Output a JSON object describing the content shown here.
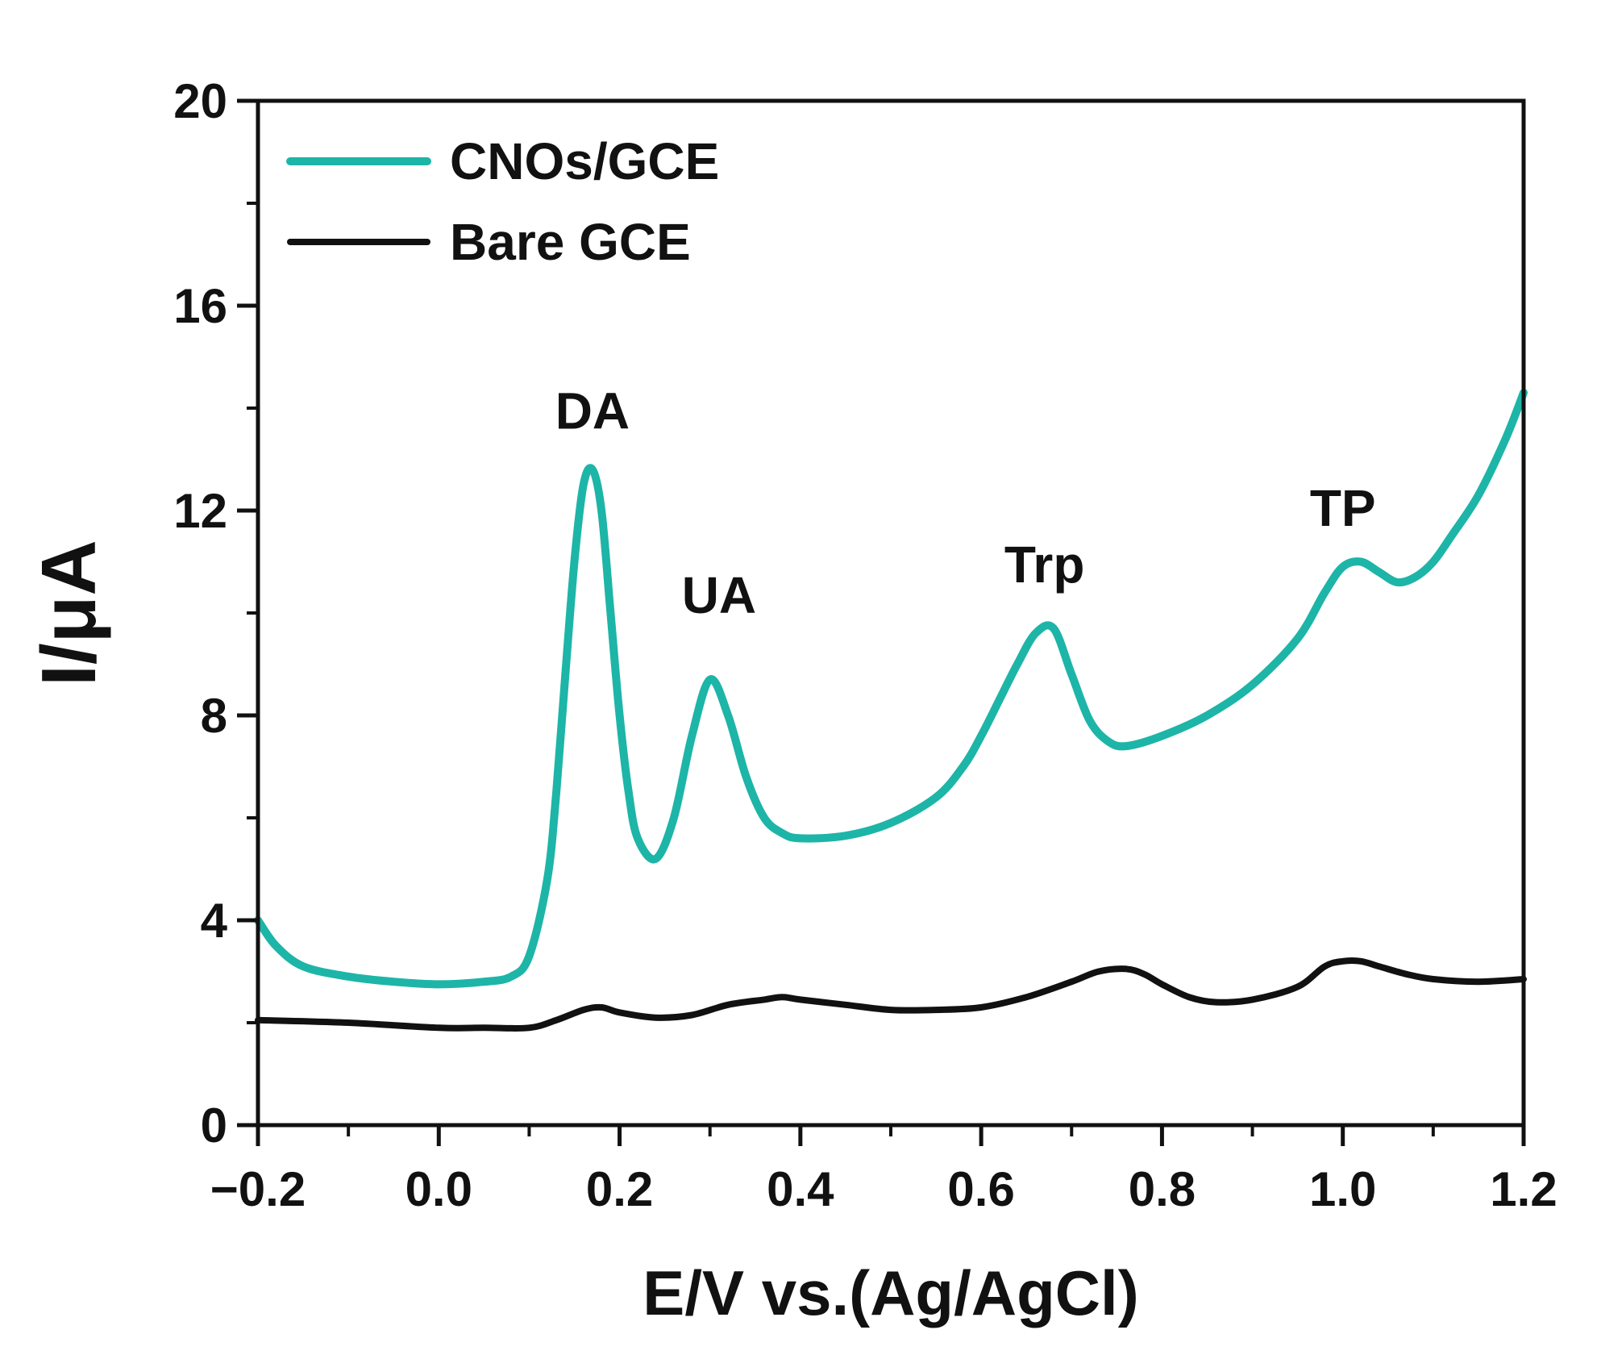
{
  "chart_data": {
    "type": "line",
    "title": "",
    "xlabel": "E/V vs.(Ag/AgCl)",
    "ylabel": "I/μA",
    "xlim": [
      -0.2,
      1.2
    ],
    "ylim": [
      0,
      20
    ],
    "xticks": [
      -0.2,
      0.0,
      0.2,
      0.4,
      0.6,
      0.8,
      1.0,
      1.2
    ],
    "xtick_labels": [
      "−0.2",
      "0.0",
      "0.2",
      "0.4",
      "0.6",
      "0.8",
      "1.0",
      "1.2"
    ],
    "yticks": [
      0,
      4,
      8,
      12,
      16,
      20
    ],
    "ytick_labels": [
      "0",
      "4",
      "8",
      "12",
      "16",
      "20"
    ],
    "grid": false,
    "legend_position": "top-left",
    "series": [
      {
        "name": "CNOs/GCE",
        "color": "#1db5a7",
        "x": [
          -0.2,
          -0.18,
          -0.15,
          -0.1,
          -0.05,
          0.0,
          0.05,
          0.08,
          0.1,
          0.12,
          0.13,
          0.14,
          0.15,
          0.16,
          0.17,
          0.18,
          0.19,
          0.2,
          0.21,
          0.22,
          0.24,
          0.26,
          0.28,
          0.3,
          0.32,
          0.34,
          0.36,
          0.38,
          0.4,
          0.45,
          0.5,
          0.55,
          0.58,
          0.6,
          0.62,
          0.64,
          0.66,
          0.68,
          0.7,
          0.72,
          0.74,
          0.76,
          0.8,
          0.85,
          0.9,
          0.95,
          0.98,
          1.0,
          1.02,
          1.04,
          1.06,
          1.08,
          1.1,
          1.12,
          1.15,
          1.18,
          1.2
        ],
        "y": [
          4.0,
          3.5,
          3.1,
          2.9,
          2.8,
          2.75,
          2.8,
          2.9,
          3.3,
          4.8,
          6.5,
          8.8,
          11.0,
          12.5,
          12.8,
          12.0,
          10.0,
          8.0,
          6.5,
          5.6,
          5.2,
          6.0,
          7.6,
          8.7,
          8.0,
          6.8,
          6.0,
          5.7,
          5.6,
          5.65,
          5.9,
          6.4,
          7.0,
          7.6,
          8.3,
          9.0,
          9.6,
          9.7,
          8.8,
          7.9,
          7.5,
          7.4,
          7.6,
          8.0,
          8.6,
          9.5,
          10.4,
          10.9,
          11.0,
          10.8,
          10.6,
          10.7,
          11.0,
          11.5,
          12.3,
          13.4,
          14.3
        ]
      },
      {
        "name": "Bare GCE",
        "color": "#111111",
        "x": [
          -0.2,
          -0.1,
          0.0,
          0.05,
          0.1,
          0.13,
          0.16,
          0.18,
          0.2,
          0.24,
          0.28,
          0.32,
          0.36,
          0.38,
          0.4,
          0.45,
          0.5,
          0.55,
          0.6,
          0.65,
          0.7,
          0.73,
          0.76,
          0.78,
          0.8,
          0.83,
          0.86,
          0.9,
          0.95,
          0.98,
          1.0,
          1.02,
          1.04,
          1.07,
          1.1,
          1.15,
          1.2
        ],
        "y": [
          2.05,
          2.0,
          1.9,
          1.9,
          1.9,
          2.05,
          2.25,
          2.3,
          2.2,
          2.1,
          2.15,
          2.35,
          2.45,
          2.5,
          2.45,
          2.35,
          2.25,
          2.25,
          2.3,
          2.5,
          2.8,
          3.0,
          3.05,
          2.95,
          2.75,
          2.5,
          2.4,
          2.45,
          2.7,
          3.1,
          3.2,
          3.2,
          3.1,
          2.95,
          2.85,
          2.8,
          2.85
        ]
      }
    ],
    "annotations": [
      {
        "text": "DA",
        "x": 0.17,
        "y": 13.6
      },
      {
        "text": "UA",
        "x": 0.31,
        "y": 10.0
      },
      {
        "text": "Trp",
        "x": 0.67,
        "y": 10.6
      },
      {
        "text": "TP",
        "x": 1.0,
        "y": 11.7
      }
    ]
  }
}
